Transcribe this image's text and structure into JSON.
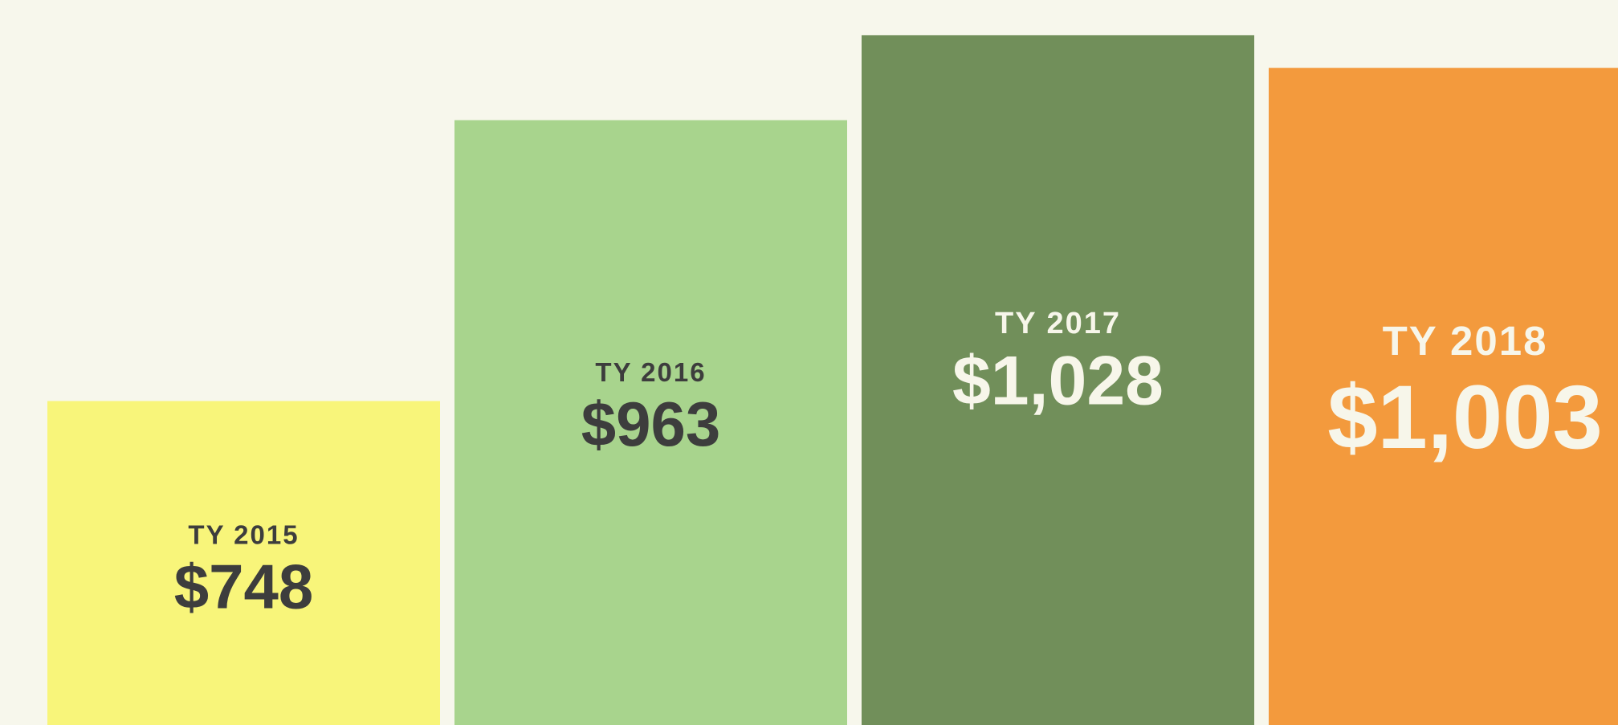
{
  "chart_data": {
    "type": "bar",
    "categories": [
      "TY 2015",
      "TY 2016",
      "TY 2017",
      "TY 2018"
    ],
    "values": [
      748,
      963,
      1028,
      1003
    ],
    "value_labels": [
      "$748",
      "$963",
      "$1,028",
      "$1,003"
    ],
    "colors": [
      "#f8f57a",
      "#a8d48d",
      "#718f5a",
      "#f39a3d"
    ],
    "text_colors": [
      "#3d3d3d",
      "#3d3d3d",
      "#f7f6ea",
      "#f7f6ea"
    ],
    "ylim": [
      500,
      1055
    ]
  }
}
